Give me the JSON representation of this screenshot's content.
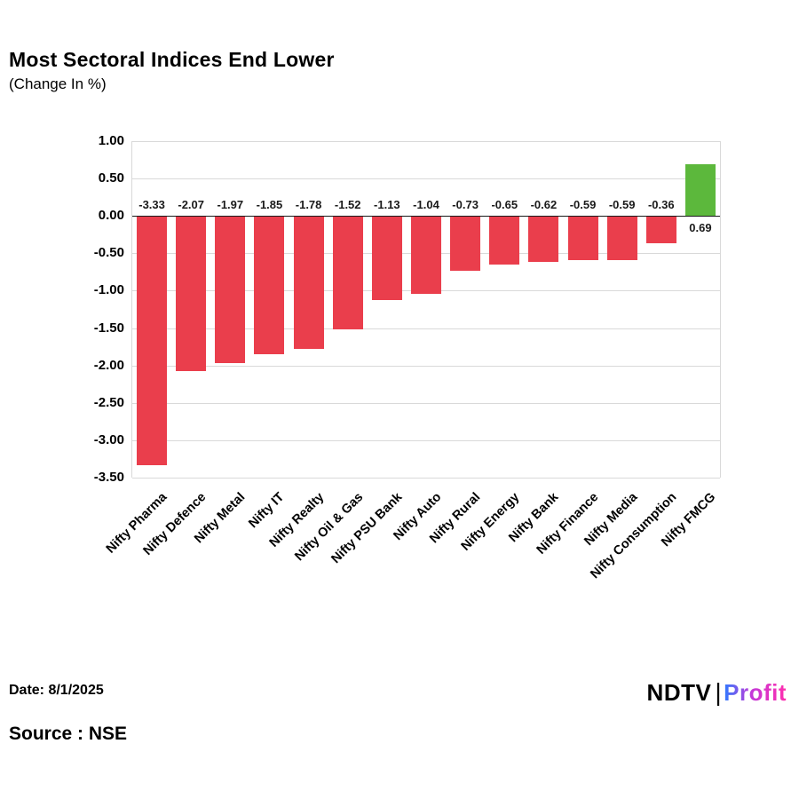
{
  "header": {
    "title": "Most Sectoral Indices End Lower",
    "subtitle": "(Change In %)"
  },
  "chart_data": {
    "type": "bar",
    "title": "Most Sectoral Indices End Lower",
    "xlabel": "",
    "ylabel": "Change In %",
    "categories": [
      "Nifty Pharma",
      "Nifty Defence",
      "Nifty Metal",
      "Nifty IT",
      "Nifty Realty",
      "Nifty Oil & Gas",
      "Nifty PSU Bank",
      "Nifty Auto",
      "Nifty Rural",
      "Nifty Energy",
      "Nifty Bank",
      "Nifty Finance",
      "Nifty Media",
      "Nifty Consumption",
      "Nifty FMCG"
    ],
    "values": [
      -3.33,
      -2.07,
      -1.97,
      -1.85,
      -1.78,
      -1.52,
      -1.13,
      -1.04,
      -0.73,
      -0.65,
      -0.62,
      -0.59,
      -0.59,
      -0.36,
      0.69
    ],
    "value_labels": [
      "-3.33",
      "-2.07",
      "-1.97",
      "-1.85",
      "-1.78",
      "-1.52",
      "-1.13",
      "-1.04",
      "-0.73",
      "-0.65",
      "-0.62",
      "-0.59",
      "-0.59",
      "-0.36",
      "0.69"
    ],
    "ylim": [
      -3.5,
      1.0
    ],
    "yticks": [
      "1.00",
      "0.50",
      "0.00",
      "-0.50",
      "-1.00",
      "-1.50",
      "-2.00",
      "-2.50",
      "-3.00",
      "-3.50"
    ],
    "grid": true,
    "legend": "none",
    "colors": {
      "negative": "#ea3e4c",
      "positive": "#5cb83c",
      "gridline": "#d9d9d9",
      "zero_line": "#1a1a1a"
    }
  },
  "footer": {
    "date_label": "Date: 8/1/2025",
    "source_label": "Source : NSE",
    "brand": {
      "ndtv": "NDTV",
      "separator": "|",
      "profit": "Profit"
    }
  }
}
